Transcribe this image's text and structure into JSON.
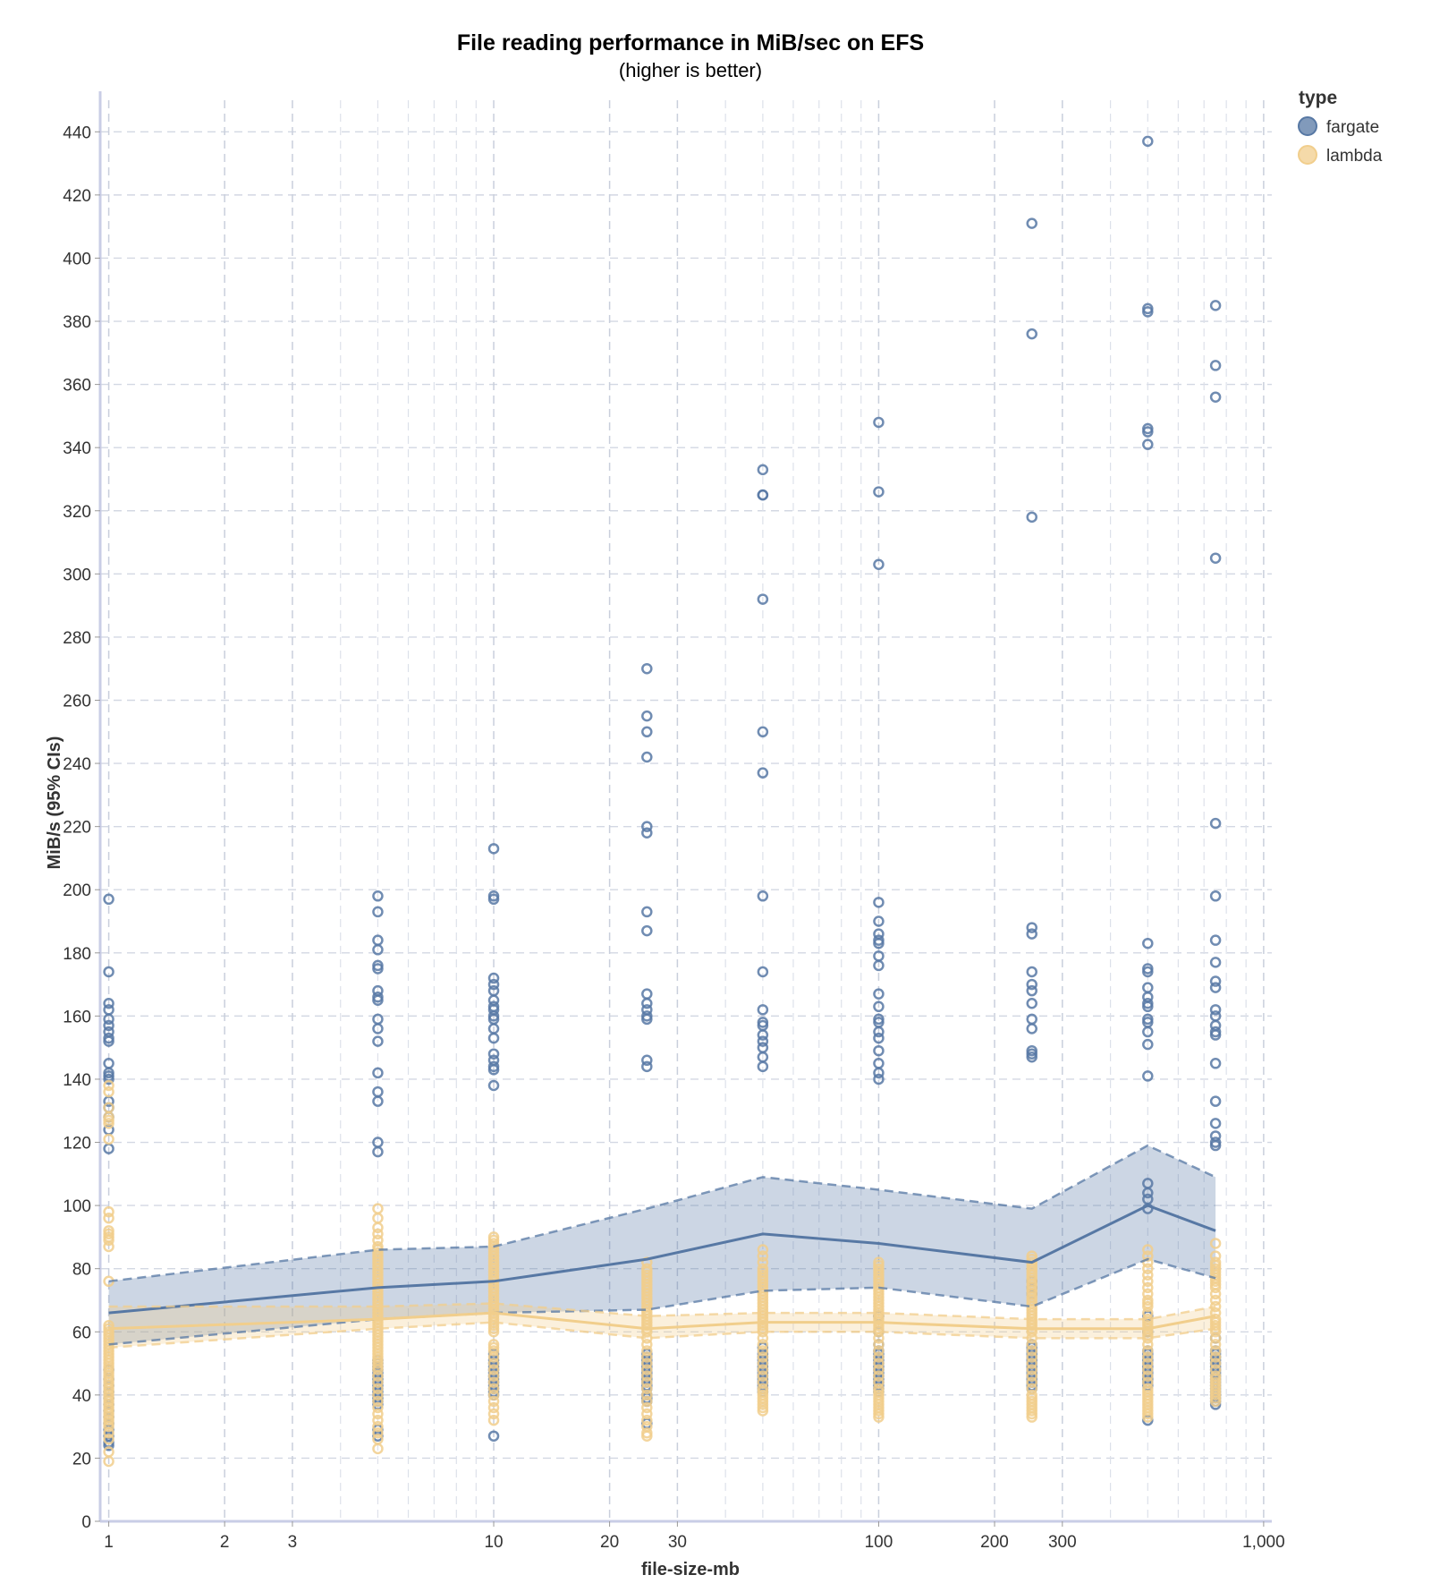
{
  "chart_data": {
    "type": "scatter",
    "title": "File reading performance in MiB/sec on EFS",
    "subtitle": "(higher is better)",
    "xlabel": "file-size-mb",
    "ylabel": "MiB/s (95% CIs)",
    "x_scale": "log",
    "xlim": [
      0.95,
      1050
    ],
    "ylim": [
      0,
      450
    ],
    "x_ticks": [
      1,
      2,
      3,
      10,
      20,
      30,
      100,
      200,
      300,
      1000
    ],
    "x_tick_labels": [
      "1",
      "2",
      "3",
      "10",
      "20",
      "30",
      "100",
      "200",
      "300",
      "1,000"
    ],
    "y_ticks": [
      0,
      20,
      40,
      60,
      80,
      100,
      120,
      140,
      160,
      180,
      200,
      220,
      240,
      260,
      280,
      300,
      320,
      340,
      360,
      380,
      400,
      420,
      440
    ],
    "grid": true,
    "legend": {
      "title": "type",
      "position": "top-right",
      "entries": [
        {
          "label": "fargate",
          "color": "#5778a4"
        },
        {
          "label": "lambda",
          "color": "#f1ce8c"
        }
      ]
    },
    "x_categories": [
      1,
      5,
      10,
      25,
      50,
      100,
      250,
      500,
      750
    ],
    "series": [
      {
        "name": "fargate",
        "color": "#5778a4",
        "mean": [
          66,
          74,
          76,
          83,
          91,
          88,
          82,
          100,
          92
        ],
        "ci_lower": [
          56,
          64,
          66,
          67,
          73,
          74,
          68,
          83,
          77
        ],
        "ci_upper": [
          76,
          86,
          87,
          99,
          109,
          105,
          99,
          119,
          109
        ],
        "points": [
          [
            1,
            [
              197,
              174,
              164,
              162,
              159,
              157,
              155,
              153,
              152,
              145,
              142,
              141,
              140,
              133,
              131,
              128,
              124,
              118,
              48,
              45,
              43,
              41,
              39,
              37,
              35,
              33,
              31,
              29,
              27,
              25,
              24
            ]
          ],
          [
            5,
            [
              198,
              193,
              184,
              181,
              176,
              175,
              168,
              166,
              165,
              159,
              156,
              152,
              142,
              136,
              133,
              120,
              117,
              51,
              50,
              49,
              48,
              47,
              46,
              45,
              44,
              43,
              42,
              41,
              40,
              39,
              38,
              37,
              29,
              27
            ]
          ],
          [
            10,
            [
              213,
              198,
              197,
              172,
              170,
              168,
              165,
              163,
              162,
              160,
              159,
              156,
              153,
              148,
              146,
              144,
              143,
              138,
              53,
              51,
              50,
              49,
              48,
              47,
              46,
              45,
              44,
              43,
              42,
              41,
              40,
              27
            ]
          ],
          [
            25,
            [
              270,
              255,
              250,
              242,
              220,
              218,
              193,
              187,
              167,
              164,
              162,
              160,
              159,
              146,
              144,
              53,
              52,
              51,
              50,
              49,
              48,
              47,
              46,
              45,
              44,
              43,
              42,
              40,
              39,
              38,
              31
            ]
          ],
          [
            50,
            [
              333,
              325,
              325,
              292,
              250,
              237,
              198,
              174,
              162,
              158,
              157,
              154,
              152,
              150,
              147,
              144,
              55,
              53,
              52,
              51,
              50,
              49,
              48,
              47,
              46,
              45,
              44,
              43,
              42,
              41
            ]
          ],
          [
            100,
            [
              348,
              326,
              303,
              196,
              190,
              186,
              184,
              183,
              179,
              176,
              167,
              163,
              159,
              158,
              155,
              153,
              149,
              145,
              142,
              140,
              65,
              60,
              56,
              54,
              53,
              52,
              51,
              50,
              49,
              48,
              47,
              46,
              45,
              44,
              43,
              42,
              41
            ]
          ],
          [
            250,
            [
              411,
              376,
              318,
              188,
              186,
              174,
              170,
              168,
              164,
              159,
              156,
              149,
              148,
              147,
              76,
              74,
              72,
              56,
              55,
              54,
              53,
              52,
              51,
              50,
              49,
              48,
              47,
              46,
              45,
              44,
              43,
              42
            ]
          ],
          [
            500,
            [
              437,
              384,
              383,
              346,
              345,
              341,
              183,
              175,
              174,
              169,
              166,
              164,
              163,
              159,
              158,
              155,
              151,
              141,
              107,
              104,
              102,
              99,
              65,
              60,
              54,
              53,
              52,
              51,
              50,
              49,
              48,
              47,
              46,
              45,
              44,
              43,
              32
            ]
          ],
          [
            750,
            [
              385,
              366,
              356,
              305,
              221,
              198,
              184,
              177,
              171,
              169,
              162,
              160,
              157,
              155,
              154,
              145,
              133,
              126,
              122,
              120,
              119,
              58,
              54,
              53,
              52,
              51,
              50,
              49,
              48,
              47,
              46,
              45,
              44,
              43,
              42,
              41,
              40,
              39,
              38,
              37
            ]
          ]
        ]
      },
      {
        "name": "lambda",
        "color": "#f1ce8c",
        "mean": [
          61,
          64,
          66,
          61,
          63,
          63,
          61,
          61,
          65
        ],
        "ci_lower": [
          55,
          61,
          63,
          58,
          60,
          60,
          58,
          58,
          61
        ],
        "ci_upper": [
          68,
          68,
          69,
          65,
          66,
          66,
          64,
          64,
          68
        ],
        "points": [
          [
            1,
            [
              138,
              136,
              131,
              128,
              127,
              126,
              121,
              98,
              96,
              92,
              91,
              90,
              89,
              87,
              76,
              62,
              61,
              60,
              59,
              58,
              57,
              56,
              55,
              54,
              53,
              52,
              51,
              50,
              49,
              48,
              47,
              46,
              45,
              44,
              43,
              42,
              41,
              40,
              39,
              38,
              37,
              36,
              35,
              34,
              33,
              32,
              31,
              30,
              28,
              26,
              22,
              19
            ]
          ],
          [
            5,
            [
              99,
              96,
              93,
              91,
              89,
              87,
              86,
              85,
              84,
              83,
              82,
              81,
              80,
              79,
              78,
              77,
              76,
              75,
              74,
              73,
              72,
              71,
              70,
              69,
              68,
              67,
              66,
              65,
              64,
              63,
              62,
              61,
              60,
              59,
              58,
              57,
              56,
              55,
              54,
              53,
              52,
              51,
              50,
              49,
              48,
              46,
              44,
              42,
              40,
              38,
              36,
              34,
              32,
              30,
              28,
              26,
              23
            ]
          ],
          [
            10,
            [
              90,
              89,
              88,
              87,
              86,
              85,
              84,
              83,
              82,
              81,
              80,
              79,
              78,
              77,
              76,
              75,
              74,
              73,
              72,
              71,
              70,
              69,
              68,
              67,
              66,
              65,
              64,
              63,
              62,
              61,
              60,
              56,
              55,
              54,
              52,
              50,
              48,
              46,
              44,
              42,
              40,
              38,
              36,
              34,
              32
            ]
          ],
          [
            25,
            [
              82,
              80,
              79,
              78,
              77,
              76,
              75,
              74,
              73,
              72,
              71,
              70,
              69,
              68,
              67,
              66,
              65,
              64,
              63,
              62,
              61,
              60,
              58,
              56,
              54,
              52,
              50,
              48,
              46,
              44,
              42,
              40,
              38,
              36,
              34,
              32,
              30,
              28,
              27
            ]
          ],
          [
            50,
            [
              86,
              84,
              82,
              80,
              79,
              78,
              77,
              76,
              75,
              74,
              73,
              72,
              71,
              70,
              69,
              68,
              67,
              66,
              65,
              64,
              63,
              62,
              61,
              60,
              58,
              56,
              54,
              52,
              50,
              48,
              46,
              44,
              42,
              41,
              40,
              39,
              38,
              37,
              36,
              35
            ]
          ],
          [
            100,
            [
              82,
              81,
              80,
              79,
              78,
              77,
              76,
              75,
              74,
              73,
              72,
              71,
              70,
              69,
              68,
              67,
              66,
              65,
              64,
              63,
              62,
              61,
              60,
              58,
              56,
              54,
              52,
              50,
              48,
              46,
              44,
              42,
              41,
              40,
              39,
              38,
              37,
              36,
              35,
              34,
              33
            ]
          ],
          [
            250,
            [
              84,
              83,
              82,
              81,
              80,
              79,
              78,
              77,
              76,
              75,
              74,
              73,
              72,
              71,
              70,
              69,
              68,
              67,
              66,
              65,
              64,
              63,
              62,
              61,
              60,
              58,
              56,
              54,
              52,
              50,
              48,
              46,
              44,
              42,
              40,
              39,
              38,
              37,
              36,
              35,
              34,
              33
            ]
          ],
          [
            500,
            [
              86,
              84,
              82,
              80,
              78,
              76,
              74,
              72,
              70,
              69,
              68,
              66,
              64,
              63,
              62,
              61,
              60,
              59,
              58,
              56,
              54,
              52,
              50,
              48,
              46,
              44,
              42,
              41,
              40,
              39,
              38,
              37,
              36,
              35,
              34,
              33
            ]
          ],
          [
            750,
            [
              88,
              84,
              82,
              81,
              80,
              79,
              78,
              77,
              76,
              75,
              74,
              72,
              70,
              68,
              66,
              64,
              63,
              62,
              61,
              60,
              58,
              56,
              54,
              52,
              50,
              48,
              46,
              45,
              44,
              43,
              42,
              41,
              40,
              39,
              38
            ]
          ]
        ]
      }
    ]
  }
}
